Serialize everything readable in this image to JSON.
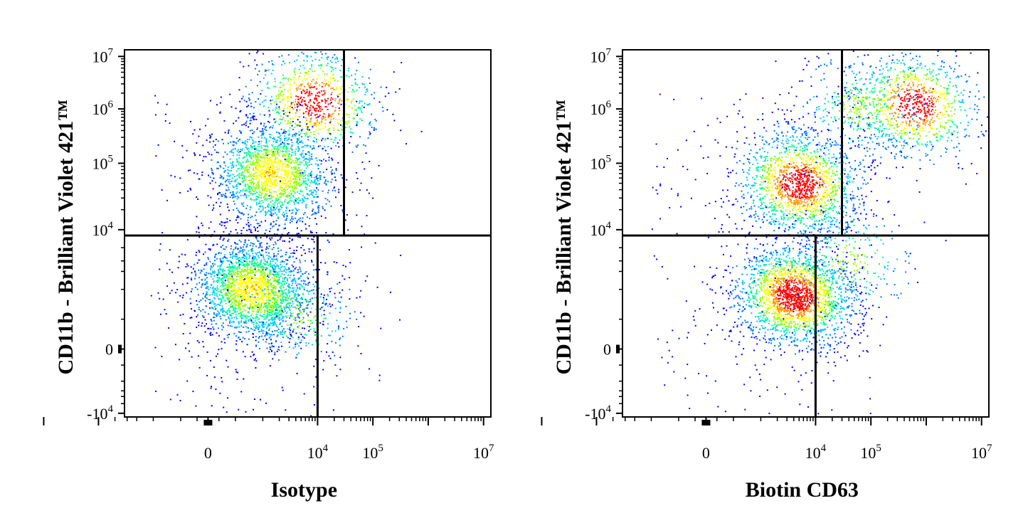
{
  "chart_data": [
    {
      "type": "scatter",
      "subtype": "flow-cytometry-density-dot-plot",
      "xlabel": "Isotype",
      "ylabel": "CD11b - Brilliant Violet 421™",
      "x_scale": "biexponential",
      "y_scale": "biexponential",
      "x_ticks": [
        {
          "value": 0,
          "base": "0",
          "exp": ""
        },
        {
          "value": 10000,
          "base": "10",
          "exp": "4"
        },
        {
          "value": 100000,
          "base": "10",
          "exp": "5"
        },
        {
          "value": 10000000,
          "base": "10",
          "exp": "7"
        }
      ],
      "y_ticks": [
        {
          "value": 10000000,
          "base": "10",
          "exp": "7"
        },
        {
          "value": 1000000,
          "base": "10",
          "exp": "6"
        },
        {
          "value": 100000,
          "base": "10",
          "exp": "5"
        },
        {
          "value": 10000,
          "base": "10",
          "exp": "4"
        },
        {
          "value": 0,
          "base": "0",
          "exp": ""
        },
        {
          "value": -10000,
          "base": "-10",
          "exp": "4"
        }
      ],
      "quadrant_gates": {
        "x_lower": 10000,
        "x_upper": 30000,
        "y": 8000
      },
      "populations": [
        {
          "x": 9000,
          "y": 1400000,
          "weight": 0.16,
          "peak": "red"
        },
        {
          "x": 1500,
          "y": 70000,
          "weight": 0.34,
          "peak": "yellow"
        },
        {
          "x": 800,
          "y": 1000,
          "weight": 0.44,
          "peak": "yellow"
        },
        {
          "x": 4000,
          "y": 600,
          "weight": 0.06,
          "peak": "green"
        }
      ],
      "color_scale": [
        "#0000ff",
        "#0078ff",
        "#00c8ff",
        "#00ff96",
        "#96ff00",
        "#ffff00",
        "#ff9600",
        "#ff0000"
      ],
      "grid": false
    },
    {
      "type": "scatter",
      "subtype": "flow-cytometry-density-dot-plot",
      "xlabel": "Biotin CD63",
      "ylabel": "CD11b - Brilliant Violet 421™",
      "x_scale": "biexponential",
      "y_scale": "biexponential",
      "x_ticks": [
        {
          "value": 0,
          "base": "0",
          "exp": ""
        },
        {
          "value": 10000,
          "base": "10",
          "exp": "4"
        },
        {
          "value": 100000,
          "base": "10",
          "exp": "5"
        },
        {
          "value": 10000000,
          "base": "10",
          "exp": "7"
        }
      ],
      "y_ticks": [
        {
          "value": 10000000,
          "base": "10",
          "exp": "7"
        },
        {
          "value": 1000000,
          "base": "10",
          "exp": "6"
        },
        {
          "value": 100000,
          "base": "10",
          "exp": "5"
        },
        {
          "value": 10000,
          "base": "10",
          "exp": "4"
        },
        {
          "value": 0,
          "base": "0",
          "exp": ""
        },
        {
          "value": -10000,
          "base": "-10",
          "exp": "4"
        }
      ],
      "quadrant_gates": {
        "x_lower": 10000,
        "x_upper": 30000,
        "y": 8000
      },
      "populations": [
        {
          "x": 600000,
          "y": 1200000,
          "weight": 0.18,
          "peak": "red"
        },
        {
          "x": 60000,
          "y": 1100000,
          "weight": 0.07,
          "peak": "green"
        },
        {
          "x": 5000,
          "y": 50000,
          "weight": 0.3,
          "peak": "red"
        },
        {
          "x": 4000,
          "y": 900,
          "weight": 0.4,
          "peak": "red"
        },
        {
          "x": 40000,
          "y": 3000,
          "weight": 0.05,
          "peak": "green"
        }
      ],
      "color_scale": [
        "#0000ff",
        "#0078ff",
        "#00c8ff",
        "#00ff96",
        "#96ff00",
        "#ffff00",
        "#ff9600",
        "#ff0000"
      ],
      "grid": false
    }
  ]
}
